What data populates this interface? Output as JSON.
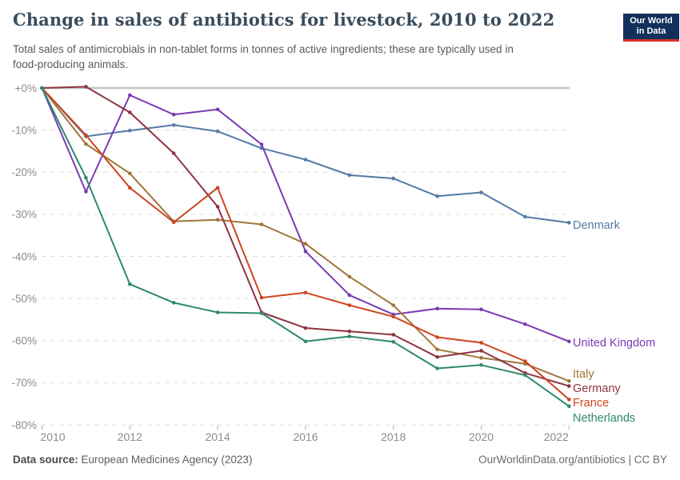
{
  "header": {
    "title": "Change in sales of antibiotics for livestock, 2010 to 2022",
    "subtitle": "Total sales of antimicrobials in non-tablet forms in tonnes of active ingredients; these are typically used in\nfood-producing animals."
  },
  "logo": {
    "line1": "Our World",
    "line2": "in Data",
    "bg_color": "#12305B",
    "stripe_color": "#D5332C"
  },
  "footer": {
    "datasource_label": "Data source:",
    "datasource_value": " European Medicines Agency (2023)",
    "link": "OurWorldinData.org/antibiotics",
    "separator": " | ",
    "license": "CC BY"
  },
  "chart_data": {
    "type": "line",
    "title": "Change in sales of antibiotics for livestock, 2010 to 2022",
    "xlabel": "",
    "ylabel": "",
    "x": [
      2010,
      2011,
      2012,
      2013,
      2014,
      2015,
      2016,
      2017,
      2018,
      2019,
      2020,
      2021,
      2022
    ],
    "x_ticks": [
      2010,
      2012,
      2014,
      2016,
      2018,
      2020,
      2022
    ],
    "x_tick_labels": [
      "2010",
      "2012",
      "2014",
      "2016",
      "2018",
      "2020",
      "2022"
    ],
    "y_ticks": [
      0,
      -10,
      -20,
      -30,
      -40,
      -50,
      -60,
      -70,
      -80
    ],
    "y_tick_labels": [
      "+0%",
      "-10%",
      "-20%",
      "-30%",
      "-40%",
      "-50%",
      "-60%",
      "-70%",
      "-80%"
    ],
    "ylim": [
      -80,
      0
    ],
    "grid": "dashed-horizontal",
    "legend_position": "right-of-line-ends",
    "colors": {
      "grid": "#DCDCDC",
      "zero_line": "#C4C4C4",
      "tick_text": "#8C8C8C",
      "tick_mark": "#B5B5B5"
    },
    "series": [
      {
        "name": "Denmark",
        "color": "#5579A7",
        "label_dy": 2.6,
        "values": [
          0,
          -11.5,
          -10.1,
          -8.8,
          -10.3,
          -14.3,
          -17.0,
          -20.7,
          -21.5,
          -25.7,
          -24.8,
          -30.6,
          -32.0
        ]
      },
      {
        "name": "United Kingdom",
        "color": "#7A3BB3",
        "label_dy": 1.2,
        "values": [
          0,
          -24.6,
          -1.7,
          -6.3,
          -5.1,
          -13.4,
          -38.8,
          -49.2,
          -53.8,
          -52.4,
          -52.6,
          -56.1,
          -60.2
        ]
      },
      {
        "name": "Italy",
        "color": "#A0763B",
        "label_dy": -9.3,
        "values": [
          0,
          -13.3,
          -20.3,
          -31.7,
          -31.3,
          -32.4,
          -37.0,
          -44.8,
          -51.6,
          -62.1,
          -64.1,
          -65.5,
          -69.6
        ]
      },
      {
        "name": "Germany",
        "color": "#8E3541",
        "label_dy": 2.4,
        "values": [
          0,
          0.3,
          -5.8,
          -15.5,
          -28.2,
          -53.3,
          -57.0,
          -57.8,
          -58.6,
          -63.9,
          -62.4,
          -67.7,
          -70.8
        ]
      },
      {
        "name": "France",
        "color": "#CE451E",
        "label_dy": 3.6,
        "values": [
          0,
          -11.2,
          -23.7,
          -31.9,
          -23.7,
          -49.8,
          -48.6,
          -51.6,
          -54.3,
          -59.2,
          -60.5,
          -64.9,
          -74.0
        ]
      },
      {
        "name": "Netherlands",
        "color": "#2E8A6C",
        "label_dy": 14.2,
        "values": [
          0,
          -21.3,
          -46.6,
          -51.0,
          -53.3,
          -53.5,
          -60.2,
          -59.0,
          -60.3,
          -66.6,
          -65.8,
          -68.2,
          -75.6
        ]
      }
    ]
  }
}
